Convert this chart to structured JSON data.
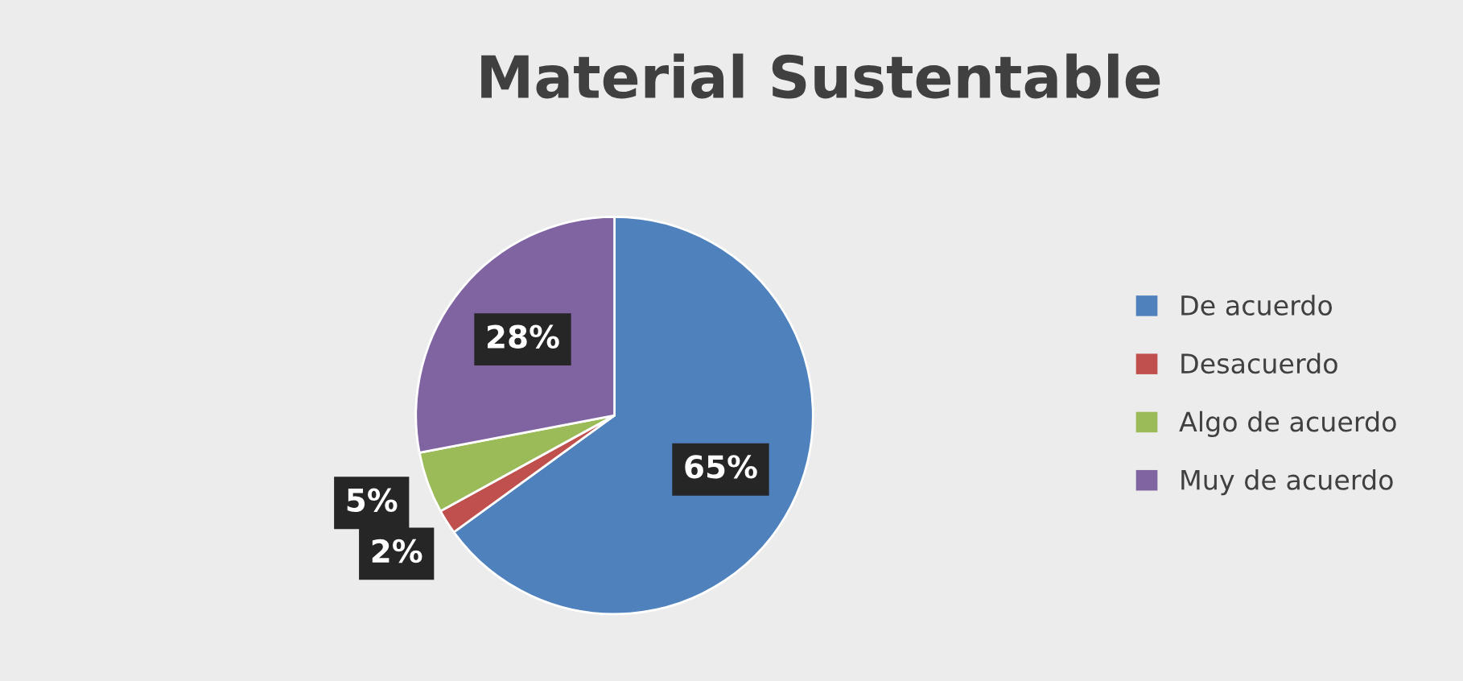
{
  "chart_data": {
    "type": "pie",
    "title": "Material Sustentable",
    "categories": [
      "De acuerdo",
      "Desacuerdo",
      "Algo de acuerdo",
      "Muy de acuerdo"
    ],
    "values": [
      65,
      2,
      5,
      28
    ],
    "colors": [
      "#4f81bd",
      "#c0504d",
      "#9bbb59",
      "#8064a2"
    ],
    "value_labels": [
      "65%",
      "2%",
      "5%",
      "28%"
    ],
    "legend": "right"
  }
}
